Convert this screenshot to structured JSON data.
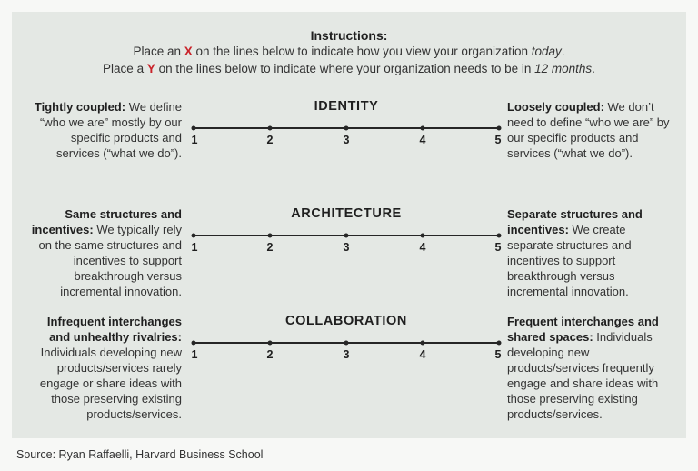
{
  "colors": {
    "page_bg": "#f7f8f6",
    "panel_bg": "#e4e8e4",
    "text": "#333333",
    "text_strong": "#1f1f1f",
    "accent_red": "#c9232a",
    "line": "#262626"
  },
  "instructions": {
    "title": "Instructions:",
    "line1": {
      "pre": "Place an ",
      "marker": "X",
      "mid": " on the lines below to indicate how you view your organization ",
      "emphasis": "today",
      "post": "."
    },
    "line2": {
      "pre": "Place a ",
      "marker": "Y",
      "mid": " on the lines below to indicate where your organization needs to be in ",
      "emphasis": "12 months",
      "post": "."
    }
  },
  "scales": [
    {
      "title": "IDENTITY",
      "left": {
        "lead": "Tightly coupled:",
        "body": " We define “who we are” mostly by our specific products and services (“what we do”)."
      },
      "right": {
        "lead": "Loosely coupled:",
        "body": " We don’t need to define “who we are” by our specific products and services (“what we do”)."
      },
      "ticks": [
        "1",
        "2",
        "3",
        "4",
        "5"
      ]
    },
    {
      "title": "ARCHITECTURE",
      "left": {
        "lead": "Same structures and incentives:",
        "body": " We typically rely on the same structures and incentives to support breakthrough versus incremental innovation."
      },
      "right": {
        "lead": "Separate structures and incentives:",
        "body": " We create separate structures and incentives to support breakthrough versus incremental innovation."
      },
      "ticks": [
        "1",
        "2",
        "3",
        "4",
        "5"
      ]
    },
    {
      "title": "COLLABORATION",
      "left": {
        "lead": "Infrequent interchanges and unhealthy rivalries:",
        "body": " Individuals developing new products/services rarely engage or share ideas with those preserving existing products/services."
      },
      "right": {
        "lead": "Frequent interchanges and shared spaces:",
        "body": " Individuals developing new products/services frequently engage and share ideas with those preserving existing products/services."
      },
      "ticks": [
        "1",
        "2",
        "3",
        "4",
        "5"
      ]
    }
  ],
  "source": "Source: Ryan Raffaelli, Harvard Business School"
}
